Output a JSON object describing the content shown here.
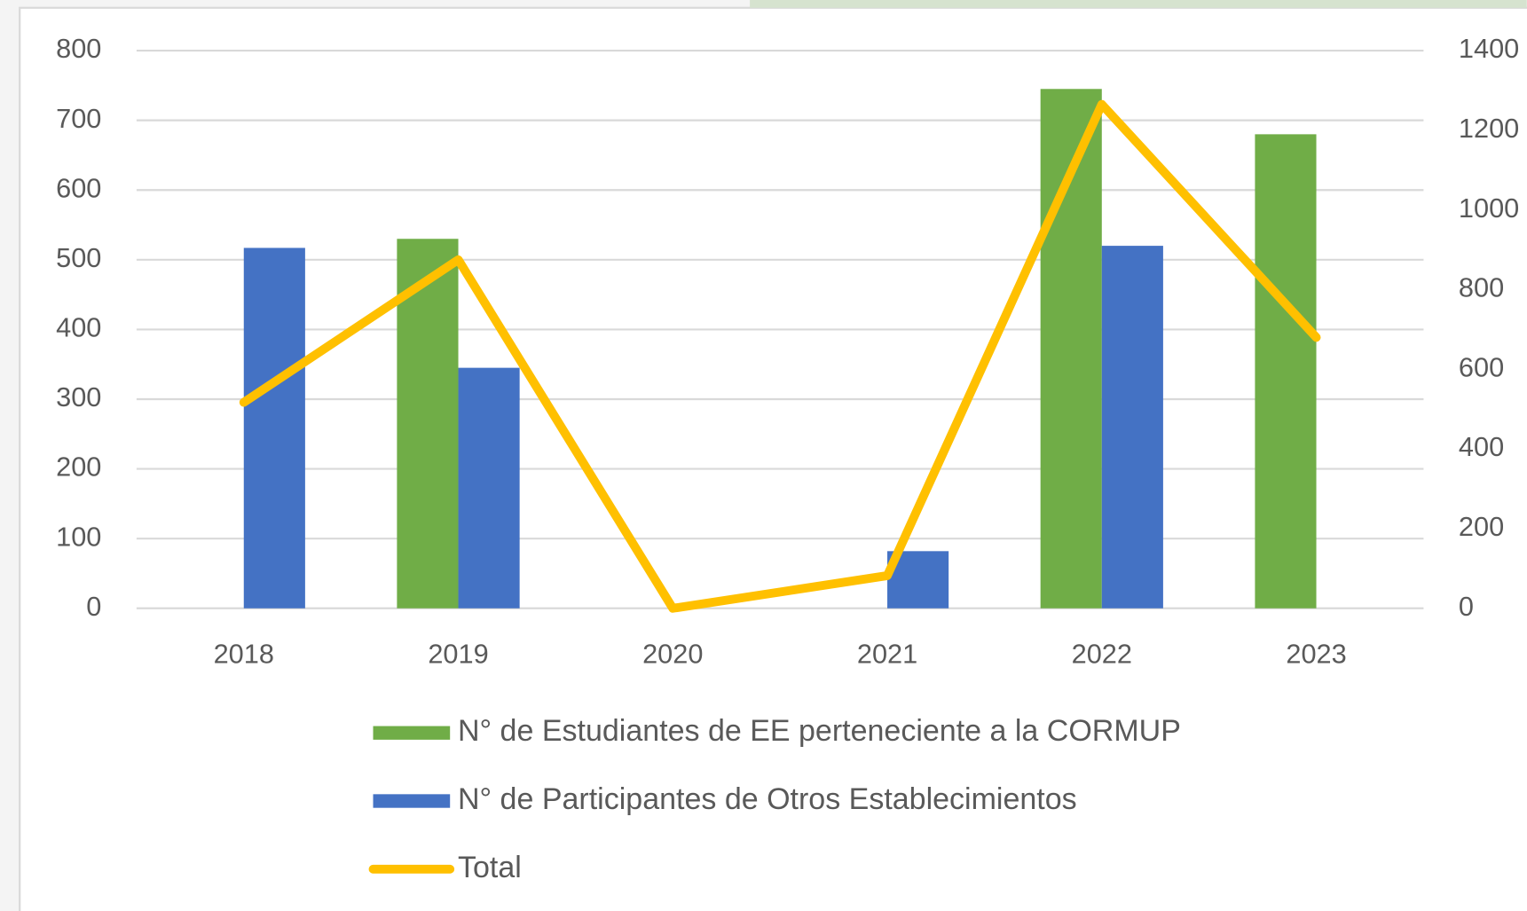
{
  "chart_data": {
    "type": "bar",
    "categories": [
      "2018",
      "2019",
      "2020",
      "2021",
      "2022",
      "2023"
    ],
    "series": [
      {
        "name": "N° de Estudiantes de EE perteneciente a la CORMUP",
        "type": "bar",
        "color": "#70ad47",
        "values": [
          0,
          530,
          0,
          0,
          745,
          680
        ]
      },
      {
        "name": "N° de Participantes de Otros Establecimientos",
        "type": "bar",
        "color": "#4472c4",
        "values": [
          517,
          345,
          0,
          82,
          520,
          0
        ]
      },
      {
        "name": "Total",
        "type": "line",
        "axis": "y2",
        "color": "#ffc000",
        "values": [
          517,
          875,
          0,
          82,
          1265,
          680
        ]
      }
    ],
    "ylim": [
      0,
      800
    ],
    "yticks": [
      0,
      100,
      200,
      300,
      400,
      500,
      600,
      700,
      800
    ],
    "y2lim": [
      0,
      1400
    ],
    "y2ticks": [
      0,
      200,
      400,
      600,
      800,
      1000,
      1200,
      1400
    ],
    "grid": true,
    "legend": "bottom"
  }
}
